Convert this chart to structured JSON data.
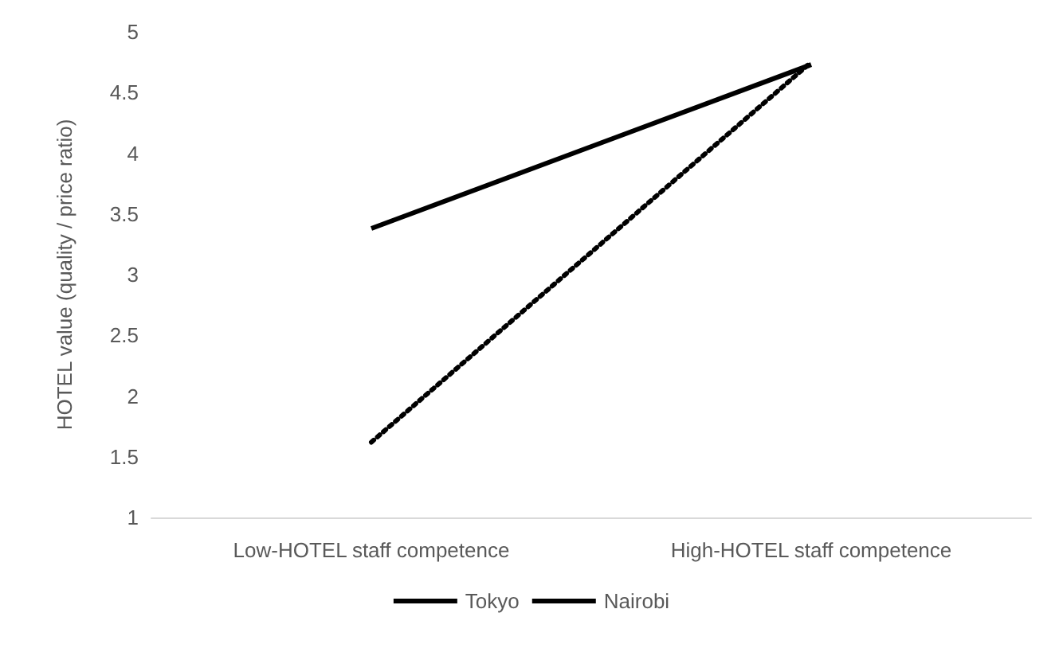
{
  "chart_data": {
    "type": "line",
    "ylabel": "HOTEL value (quality / price ratio)",
    "categories": [
      "Low-HOTEL staff competence",
      "High-HOTEL staff competence"
    ],
    "series": [
      {
        "name": "Tokyo",
        "color": "#000000",
        "values": [
          3.38,
          4.73
        ],
        "line_style": "solid"
      },
      {
        "name": "Nairobi",
        "color": "#000000",
        "values": [
          1.62,
          4.75
        ],
        "line_style": "dotted"
      }
    ],
    "ylim": [
      1,
      5
    ],
    "yticks": [
      1,
      1.5,
      2,
      2.5,
      3,
      3.5,
      4,
      4.5,
      5
    ],
    "grid": false,
    "legend": "bottom",
    "marker": "none"
  }
}
